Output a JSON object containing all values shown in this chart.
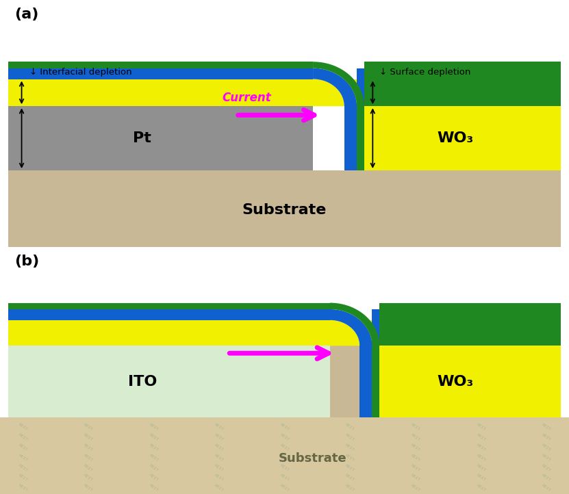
{
  "fig_width": 8.31,
  "fig_height": 7.22,
  "bg_color": "#ffffff",
  "substrate_color": "#c8b896",
  "wo3_color": "#f0f000",
  "pt_color": "#909090",
  "ito_color": "#d8ecd0",
  "blue_color": "#1060d0",
  "green_color": "#208820",
  "magenta_color": "#ff00ff",
  "label_a": "(a)",
  "label_b": "(b)",
  "text_pt": "Pt",
  "text_wo3": "WO₃",
  "text_sub_a": "Substrate",
  "text_sub_b": "Substrate",
  "text_ito": "ITO",
  "text_current_a": "Current",
  "text_interfacial": "↓ Interfacial depletion",
  "text_surface": "↓ Surface depletion"
}
